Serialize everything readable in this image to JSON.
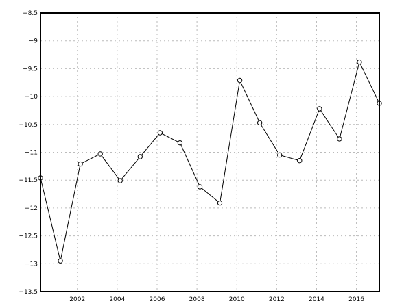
{
  "chart_data": {
    "type": "line",
    "title": "",
    "xlabel": "",
    "ylabel": "",
    "xlim": [
      2000.15,
      2017.15
    ],
    "ylim": [
      -13.5,
      -8.5
    ],
    "grid": true,
    "x_ticks": [
      2002,
      2004,
      2006,
      2008,
      2010,
      2012,
      2014,
      2016
    ],
    "x_tick_labels": [
      "2002",
      "2004",
      "2006",
      "2008",
      "2010",
      "2012",
      "2014",
      "2016"
    ],
    "y_ticks": [
      -8.5,
      -9,
      -9.5,
      -10,
      -10.5,
      -11,
      -11.5,
      -12,
      -12.5,
      -13,
      -13.5
    ],
    "y_tick_labels": [
      "-8.5",
      "-9",
      "-9.5",
      "-10",
      "-10.5",
      "-11",
      "-11.5",
      "-12",
      "-12.5",
      "-13",
      "-13.5"
    ],
    "line_color": "#000000",
    "marker": "open-circle",
    "x": [
      2000.15,
      2001.15,
      2002.15,
      2003.15,
      2004.15,
      2005.15,
      2006.15,
      2007.15,
      2008.15,
      2009.15,
      2010.15,
      2011.15,
      2012.15,
      2013.15,
      2014.15,
      2015.15,
      2016.15,
      2017.15
    ],
    "y": [
      -11.46,
      -12.95,
      -11.21,
      -11.03,
      -11.51,
      -11.08,
      -10.65,
      -10.83,
      -11.62,
      -11.91,
      -9.71,
      -10.47,
      -11.05,
      -11.15,
      -10.22,
      -10.76,
      -9.38,
      -10.12
    ]
  }
}
